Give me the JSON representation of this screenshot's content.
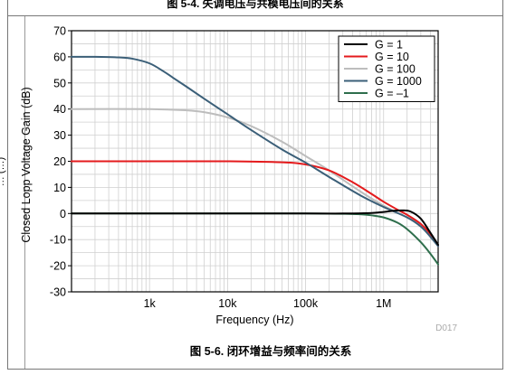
{
  "top_caption": "图 5-4. 失调电压与共模电压间的关系",
  "left_fragment": "… (…)",
  "caption": "图 5-6. 闭环增益与频率间的关系",
  "colors": {
    "G=1": "#000000",
    "G=10": "#e41a1c",
    "G=100": "#bdbdbd",
    "G=1000": "#3b5f78",
    "G=-1": "#2e6e4c"
  },
  "chart_data": {
    "type": "line",
    "title": "",
    "xlabel": "Frequency (Hz)",
    "ylabel": "Closed Lopp Voltage Gain (dB)",
    "xscale": "log",
    "xlim": [
      100,
      5000000
    ],
    "ylim": [
      -30,
      70
    ],
    "yticks": [
      70,
      60,
      50,
      40,
      30,
      20,
      10,
      0,
      -10,
      -20,
      -30
    ],
    "xtick_labels": [
      {
        "value": 1000,
        "label": "1k"
      },
      {
        "value": 10000,
        "label": "10k"
      },
      {
        "value": 100000,
        "label": "100k"
      },
      {
        "value": 1000000,
        "label": "1M"
      }
    ],
    "grid": true,
    "legend_position": "top-right",
    "watermark": "D017",
    "series": [
      {
        "name": "G = 1",
        "color": "#000000",
        "x": [
          100,
          1000,
          10000,
          100000,
          300000,
          700000,
          1000000,
          1300000,
          1700000,
          2200000,
          3000000,
          4000000,
          5000000
        ],
        "y": [
          0,
          0,
          0,
          0,
          0,
          0.2,
          0.6,
          1.0,
          1.2,
          0.8,
          -2,
          -7.5,
          -12
        ]
      },
      {
        "name": "G = 10",
        "color": "#e41a1c",
        "x": [
          100,
          1000,
          10000,
          50000,
          100000,
          200000,
          400000,
          700000,
          1000000,
          1500000,
          2000000,
          3000000,
          4000000,
          5000000
        ],
        "y": [
          20,
          20,
          20,
          19.6,
          18.8,
          16.5,
          12,
          7.5,
          4.5,
          1.5,
          -0.5,
          -4,
          -8,
          -12.5
        ]
      },
      {
        "name": "G = 100",
        "color": "#bdbdbd",
        "x": [
          100,
          1000,
          3000,
          5000,
          10000,
          20000,
          50000,
          100000,
          200000,
          500000,
          1000000,
          2000000,
          3000000,
          4000000,
          5000000
        ],
        "y": [
          40,
          40,
          39.5,
          38.8,
          36.8,
          33.5,
          27.5,
          22,
          16.5,
          8.5,
          3,
          -1.5,
          -4.5,
          -8,
          -12
        ]
      },
      {
        "name": "G = 1000",
        "color": "#3b5f78",
        "x": [
          100,
          200,
          400,
          600,
          1000,
          1500,
          2000,
          3000,
          5000,
          10000,
          20000,
          50000,
          100000,
          200000,
          500000,
          1000000,
          2000000,
          3000000,
          4000000,
          5000000
        ],
        "y": [
          60,
          60,
          59.8,
          59.3,
          57.5,
          54.5,
          52,
          48.5,
          44,
          38,
          32,
          24.5,
          19.5,
          14,
          7,
          2.5,
          -1.5,
          -5,
          -9,
          -12.5
        ]
      },
      {
        "name": "G = –1",
        "color": "#2e6e4c",
        "x": [
          100,
          1000,
          10000,
          100000,
          300000,
          500000,
          700000,
          1000000,
          1500000,
          2000000,
          3000000,
          4000000,
          5000000
        ],
        "y": [
          0,
          0,
          0,
          0,
          -0.1,
          -0.3,
          -0.7,
          -1.5,
          -3.5,
          -6,
          -11,
          -15.5,
          -19.5
        ]
      }
    ]
  }
}
